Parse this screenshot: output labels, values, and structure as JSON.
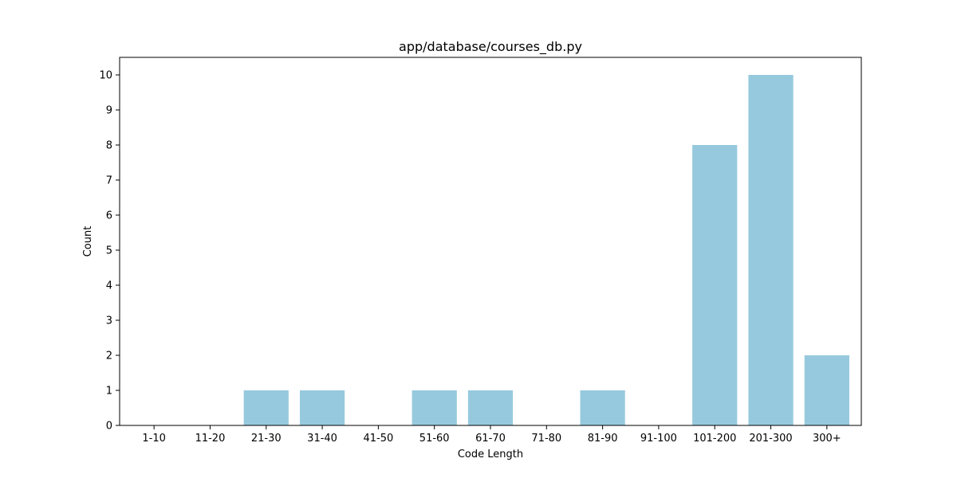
{
  "chart_data": {
    "type": "bar",
    "title": "app/database/courses_db.py",
    "xlabel": "Code Length",
    "ylabel": "Count",
    "categories": [
      "1-10",
      "11-20",
      "21-30",
      "31-40",
      "41-50",
      "51-60",
      "61-70",
      "71-80",
      "81-90",
      "91-100",
      "101-200",
      "201-300",
      "300+"
    ],
    "values": [
      0,
      0,
      1,
      1,
      0,
      1,
      1,
      0,
      1,
      0,
      8,
      10,
      2
    ],
    "yticks": [
      0,
      1,
      2,
      3,
      4,
      5,
      6,
      7,
      8,
      9,
      10
    ],
    "ylim": [
      0,
      10.5
    ],
    "grid": false,
    "bar_color": "#96c9de"
  }
}
